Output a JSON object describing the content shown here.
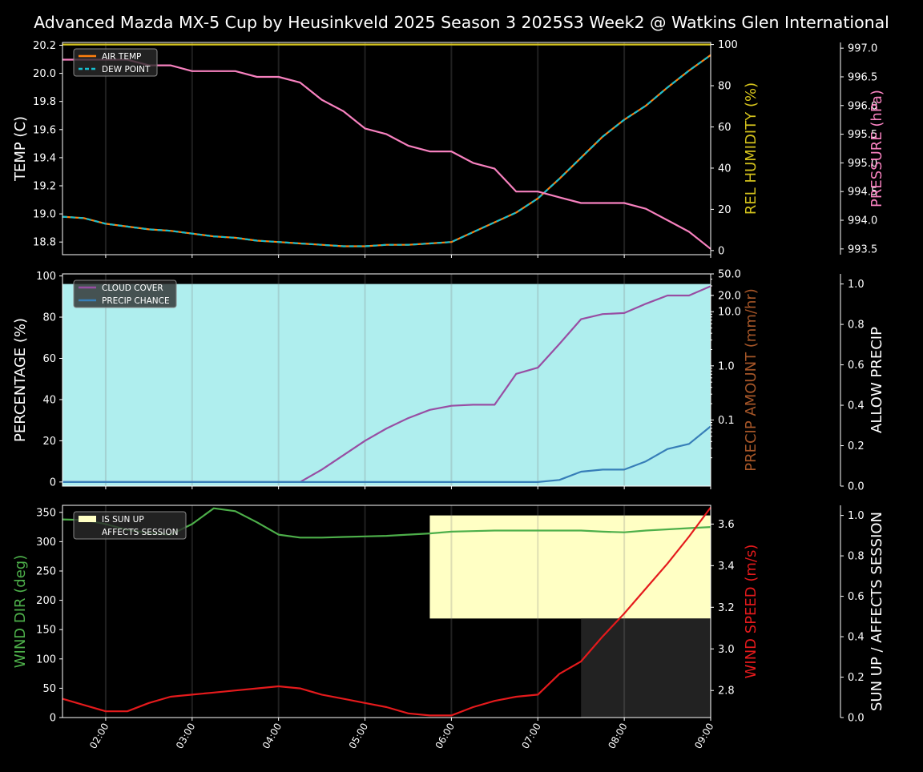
{
  "title": "Advanced Mazda MX-5 Cup by Heusinkveld 2025 Season 3 2025S3 Week2 @ Watkins Glen International",
  "x_tick_labels": [
    "02:00",
    "03:00",
    "04:00",
    "05:00",
    "06:00",
    "07:00",
    "08:00",
    "09:00"
  ],
  "colors": {
    "air_temp": "#ff7f0e",
    "dew_point": "#17becf",
    "rel_humidity": "#d4c21c",
    "pressure": "#f781bf",
    "cloud_cover": "#984ea3",
    "precip_chance": "#377eb8",
    "precip_amount_label": "#a65628",
    "allow_precip_fill": "#afeeee",
    "wind_dir": "#4daf4a",
    "wind_speed": "#e41a1c",
    "sun_up": "#ffffc4",
    "affects_session": "#222222"
  },
  "chart_data": [
    {
      "type": "line",
      "panel": "temperature",
      "x_hours": [
        1.5,
        1.75,
        2.0,
        2.25,
        2.5,
        2.75,
        3.0,
        3.25,
        3.5,
        3.75,
        4.0,
        4.25,
        4.5,
        4.75,
        5.0,
        5.25,
        5.5,
        5.75,
        6.0,
        6.25,
        6.5,
        6.75,
        7.0,
        7.25,
        7.5,
        7.75,
        8.0,
        8.25,
        8.5,
        8.75,
        9.0
      ],
      "xlim": [
        1.5,
        9.0
      ],
      "ylabel": "TEMP (C)",
      "ylim": [
        18.71,
        20.22
      ],
      "y_ticks": [
        18.8,
        19.0,
        19.2,
        19.4,
        19.6,
        19.8,
        20.0,
        20.2
      ],
      "y_tick_labels": [
        "18.8",
        "19.0",
        "19.2",
        "19.4",
        "19.6",
        "19.8",
        "20.0",
        "20.2"
      ],
      "right_axes": [
        {
          "label": "REL HUMIDITY (%)",
          "ylim": [
            -2,
            101
          ],
          "ticks": [
            0,
            20,
            40,
            60,
            80,
            100
          ],
          "tick_labels": [
            "0",
            "20",
            "40",
            "60",
            "80",
            "100"
          ]
        },
        {
          "label": "PRESSURE (hPa)",
          "ylim": [
            993.4,
            997.1
          ],
          "ticks": [
            993.5,
            994.0,
            994.5,
            995.0,
            995.5,
            996.0,
            996.5,
            997.0
          ],
          "tick_labels": [
            "993.5",
            "994.0",
            "994.5",
            "995.0",
            "995.5",
            "996.0",
            "996.5",
            "997.0"
          ]
        }
      ],
      "legend": {
        "placement": "upper-left",
        "entries": [
          "AIR TEMP",
          "DEW POINT"
        ]
      },
      "series": [
        {
          "name": "AIR TEMP",
          "axis": "left",
          "values": [
            18.98,
            18.97,
            18.93,
            18.91,
            18.89,
            18.88,
            18.86,
            18.84,
            18.83,
            18.81,
            18.8,
            18.79,
            18.78,
            18.77,
            18.77,
            18.78,
            18.78,
            18.79,
            18.8,
            18.87,
            18.94,
            19.01,
            19.11,
            19.25,
            19.4,
            19.55,
            19.67,
            19.77,
            19.9,
            20.02,
            20.13
          ]
        },
        {
          "name": "DEW POINT",
          "axis": "left",
          "dashed": true,
          "values": [
            18.98,
            18.97,
            18.93,
            18.91,
            18.89,
            18.88,
            18.86,
            18.84,
            18.83,
            18.81,
            18.8,
            18.79,
            18.78,
            18.77,
            18.77,
            18.78,
            18.78,
            18.79,
            18.8,
            18.87,
            18.94,
            19.01,
            19.11,
            19.25,
            19.4,
            19.55,
            19.67,
            19.77,
            19.9,
            20.02,
            20.13
          ]
        },
        {
          "name": "REL HUMIDITY",
          "axis": "humidity",
          "values": [
            100,
            100,
            100,
            100,
            100,
            100,
            100,
            100,
            100,
            100,
            100,
            100,
            100,
            100,
            100,
            100,
            100,
            100,
            100,
            100,
            100,
            100,
            100,
            100,
            100,
            100,
            100,
            100,
            100,
            100,
            100
          ]
        },
        {
          "name": "PRESSURE",
          "axis": "pressure",
          "values": [
            996.8,
            996.8,
            996.8,
            996.8,
            996.7,
            996.7,
            996.6,
            996.6,
            996.6,
            996.5,
            996.5,
            996.4,
            996.1,
            995.9,
            995.6,
            995.5,
            995.3,
            995.2,
            995.2,
            995.0,
            994.9,
            994.5,
            994.5,
            994.4,
            994.3,
            994.3,
            994.3,
            994.2,
            994.0,
            993.8,
            993.5
          ]
        }
      ]
    },
    {
      "type": "line",
      "panel": "precipitation",
      "x_hours": [
        1.5,
        1.75,
        2.0,
        2.25,
        2.5,
        2.75,
        3.0,
        3.25,
        3.5,
        3.75,
        4.0,
        4.25,
        4.5,
        4.75,
        5.0,
        5.25,
        5.5,
        5.75,
        6.0,
        6.25,
        6.5,
        6.75,
        7.0,
        7.25,
        7.5,
        7.75,
        8.0,
        8.25,
        8.5,
        8.75,
        9.0
      ],
      "xlim": [
        1.5,
        9.0
      ],
      "ylabel": "PERCENTAGE (%)",
      "ylim": [
        -2,
        101
      ],
      "y_ticks": [
        0,
        20,
        40,
        60,
        80,
        100
      ],
      "y_tick_labels": [
        "0",
        "20",
        "40",
        "60",
        "80",
        "100"
      ],
      "right_axes": [
        {
          "label": "PRECIP AMOUNT (mm/hr)",
          "scale": "log",
          "ylim": [
            0.006,
            50
          ],
          "ticks": [
            0.1,
            1.0,
            10.0,
            20.0,
            50.0
          ],
          "tick_labels": [
            "0.1",
            "1.0",
            "10.0",
            "20.0",
            "50.0"
          ]
        },
        {
          "label": "ALLOW PRECIP",
          "ylim": [
            0,
            1.05
          ],
          "ticks": [
            0,
            0.2,
            0.4,
            0.6,
            0.8,
            1.0
          ],
          "tick_labels": [
            "0.0",
            "0.2",
            "0.4",
            "0.6",
            "0.8",
            "1.0"
          ]
        }
      ],
      "legend": {
        "placement": "upper-left",
        "entries": [
          "CLOUD COVER",
          "PRECIP CHANCE"
        ]
      },
      "allow_precip": 1.0,
      "series": [
        {
          "name": "CLOUD COVER",
          "values": [
            0,
            0,
            0,
            0,
            0,
            0,
            0,
            0,
            0,
            0,
            0,
            0,
            6,
            13,
            20,
            26,
            31,
            35,
            37,
            37.5,
            37.5,
            52.5,
            55.5,
            67,
            79,
            81.5,
            82,
            86.5,
            90.5,
            90.5,
            95
          ]
        },
        {
          "name": "PRECIP CHANCE",
          "values": [
            0,
            0,
            0,
            0,
            0,
            0,
            0,
            0,
            0,
            0,
            0,
            0,
            0,
            0,
            0,
            0,
            0,
            0,
            0,
            0,
            0,
            0,
            0,
            1,
            5,
            6,
            6,
            10,
            16,
            18.5,
            27
          ]
        }
      ]
    },
    {
      "type": "line",
      "panel": "wind",
      "x_hours": [
        1.5,
        1.75,
        2.0,
        2.25,
        2.5,
        2.75,
        3.0,
        3.25,
        3.5,
        3.75,
        4.0,
        4.25,
        4.5,
        4.75,
        5.0,
        5.25,
        5.5,
        5.75,
        6.0,
        6.25,
        6.5,
        6.75,
        7.0,
        7.25,
        7.5,
        7.75,
        8.0,
        8.25,
        8.5,
        8.75,
        9.0
      ],
      "xlim": [
        1.5,
        9.0
      ],
      "ylabel": "WIND DIR (deg)",
      "ylim": [
        0,
        362
      ],
      "y_ticks": [
        0,
        50,
        100,
        150,
        200,
        250,
        300,
        350
      ],
      "y_tick_labels": [
        "0",
        "50",
        "100",
        "150",
        "200",
        "250",
        "300",
        "350"
      ],
      "right_axes": [
        {
          "label": "WIND SPEED (m/s)",
          "ylim": [
            2.67,
            3.69
          ],
          "ticks": [
            2.8,
            3.0,
            3.2,
            3.4,
            3.6
          ],
          "tick_labels": [
            "2.8",
            "3.0",
            "3.2",
            "3.4",
            "3.6"
          ]
        },
        {
          "label": "SUN UP / AFFECTS SESSION",
          "ylim": [
            0,
            1.05
          ],
          "ticks": [
            0,
            0.2,
            0.4,
            0.6,
            0.8,
            1.0
          ],
          "tick_labels": [
            "0.0",
            "0.2",
            "0.4",
            "0.6",
            "0.8",
            "1.0"
          ]
        }
      ],
      "legend": {
        "placement": "upper-left",
        "entries": [
          "IS SUN UP",
          "AFFECTS SESSION"
        ]
      },
      "is_sun_up": {
        "from_hour": 5.75,
        "to_hour": 9.0,
        "value": 1.0,
        "bottom_value": 0.49
      },
      "affects_session": {
        "from_hour": 7.5,
        "to_hour": 9.0,
        "value": 0.49
      },
      "series": [
        {
          "name": "WIND DIR",
          "axis": "left",
          "values": [
            338,
            337,
            330,
            320,
            315,
            312,
            330,
            357,
            352,
            333,
            312,
            307,
            307,
            308,
            309,
            310,
            312,
            314,
            317,
            318,
            319,
            319,
            319,
            319,
            319,
            317,
            316,
            319,
            321,
            323,
            325
          ]
        },
        {
          "name": "WIND SPEED",
          "axis": "speed",
          "values": [
            2.76,
            2.73,
            2.7,
            2.7,
            2.74,
            2.77,
            2.78,
            2.79,
            2.8,
            2.81,
            2.82,
            2.81,
            2.78,
            2.76,
            2.74,
            2.72,
            2.69,
            2.68,
            2.68,
            2.72,
            2.75,
            2.77,
            2.78,
            2.88,
            2.94,
            3.06,
            3.17,
            3.29,
            3.41,
            3.54,
            3.68
          ]
        }
      ]
    }
  ]
}
